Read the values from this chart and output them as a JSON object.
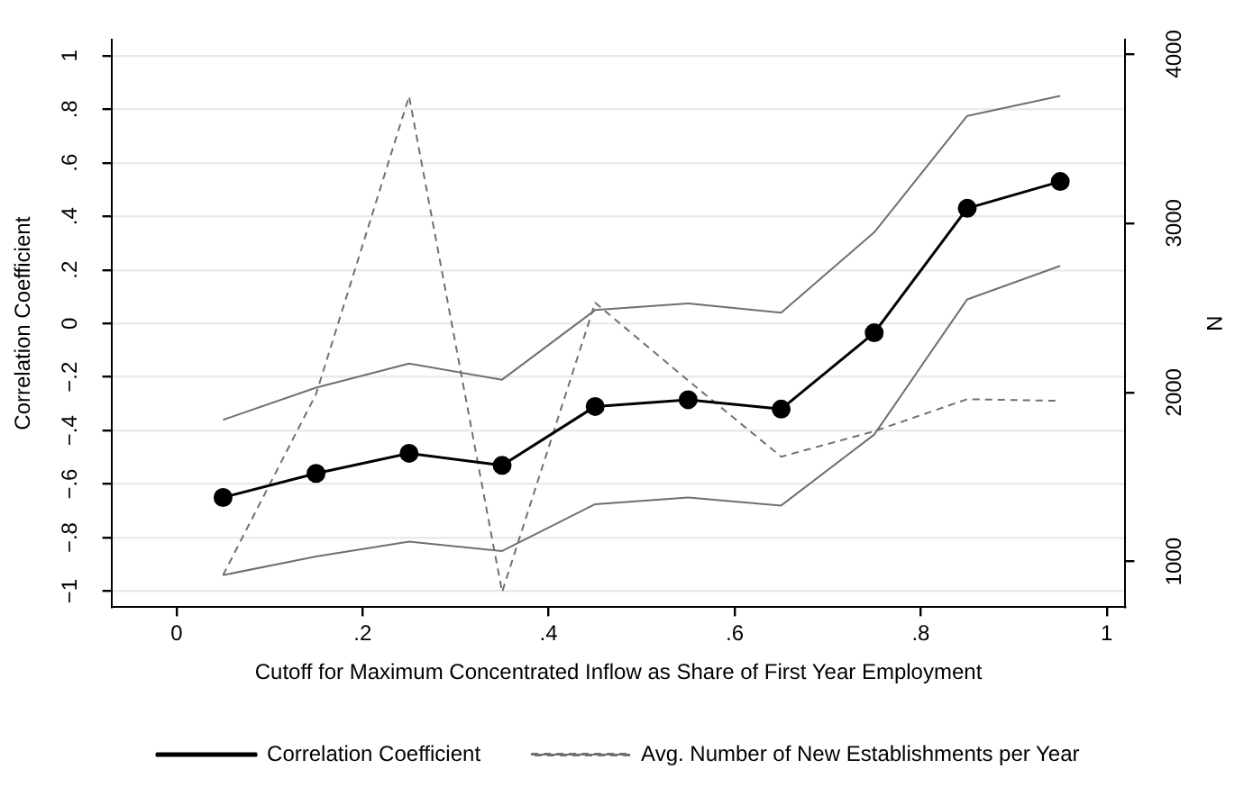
{
  "chart_data": {
    "type": "line",
    "xlabel": "Cutoff for Maximum Concentrated Inflow as Share of First Year Employment",
    "ylabel": "Correlation Coefficient",
    "y2label": "N",
    "x": [
      0.05,
      0.15,
      0.25,
      0.35,
      0.45,
      0.55,
      0.65,
      0.75,
      0.85,
      0.95
    ],
    "series": [
      {
        "name": "Correlation Coefficient",
        "color": "#000000",
        "marker": "circle",
        "line_style": "solid",
        "values": [
          -0.65,
          -0.56,
          -0.485,
          -0.53,
          -0.31,
          -0.285,
          -0.32,
          -0.035,
          0.43,
          0.53
        ]
      },
      {
        "color": "#707070",
        "marker": "none",
        "line_style": "solid",
        "values": [
          -0.36,
          -0.24,
          -0.15,
          -0.21,
          0.05,
          0.075,
          0.04,
          0.34,
          0.775,
          0.85
        ]
      },
      {
        "color": "#707070",
        "marker": "none",
        "line_style": "solid",
        "values": [
          -0.94,
          -0.87,
          -0.815,
          -0.85,
          -0.675,
          -0.65,
          -0.68,
          -0.415,
          0.09,
          0.215
        ]
      },
      {
        "name": "Avg. Number of New Establishments per Year",
        "color": "#707070",
        "marker": "none",
        "line_style": "dashed",
        "axis": "y2",
        "values": [
          920,
          1990,
          3750,
          820,
          2530,
          2070,
          1620,
          1770,
          1960,
          1950
        ]
      }
    ],
    "xlim": [
      -0.07,
      1.02
    ],
    "xticks": [
      0,
      {
        "value": 0.2,
        "label": ".2"
      },
      {
        "value": 0.4,
        "label": ".4"
      },
      {
        "value": 0.6,
        "label": ".6"
      },
      {
        "value": 0.8,
        "label": ".8"
      },
      1
    ],
    "ylim": [
      -1.06,
      1.06
    ],
    "yticks": [
      {
        "value": -1,
        "label": "−1"
      },
      {
        "value": -0.8,
        "label": "−.8"
      },
      {
        "value": -0.6,
        "label": "−.6"
      },
      {
        "value": -0.4,
        "label": "−.4"
      },
      {
        "value": -0.2,
        "label": "−.2"
      },
      0,
      {
        "value": 0.2,
        "label": ".2"
      },
      {
        "value": 0.4,
        "label": ".4"
      },
      {
        "value": 0.6,
        "label": ".6"
      },
      {
        "value": 0.8,
        "label": ".8"
      },
      1
    ],
    "y2lim": [
      730,
      4085
    ],
    "y2ticks": [
      1000,
      2000,
      3000,
      4000
    ],
    "grid": "y",
    "legend": "bottom"
  }
}
